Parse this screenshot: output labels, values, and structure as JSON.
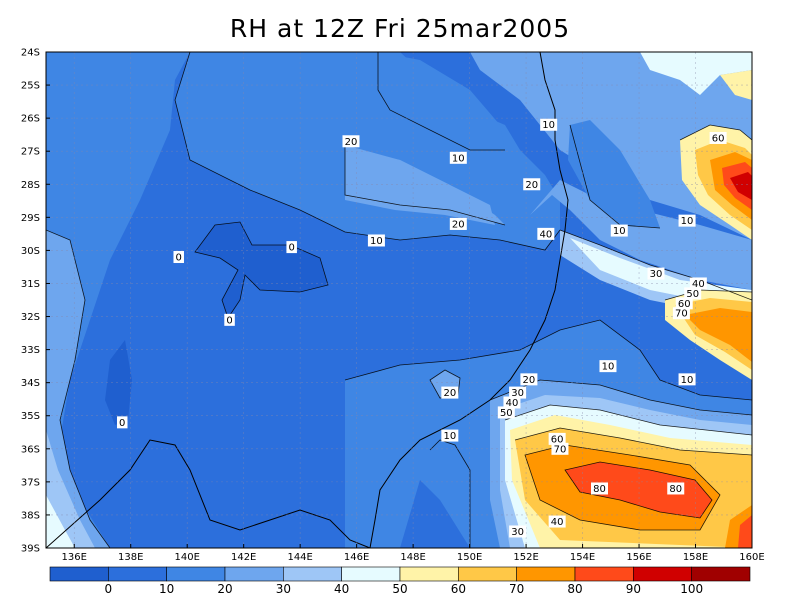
{
  "title": "RH at 12Z Fri 25mar2005",
  "axes": {
    "lat_labels": [
      "24S",
      "25S",
      "26S",
      "27S",
      "28S",
      "29S",
      "30S",
      "31S",
      "32S",
      "33S",
      "34S",
      "35S",
      "36S",
      "37S",
      "38S",
      "39S"
    ],
    "lon_labels": [
      "136E",
      "138E",
      "140E",
      "142E",
      "144E",
      "146E",
      "148E",
      "150E",
      "152E",
      "154E",
      "156E",
      "158E",
      "160E"
    ]
  },
  "colorbar": {
    "labels": [
      "0",
      "10",
      "20",
      "30",
      "40",
      "50",
      "60",
      "70",
      "80",
      "90",
      "100"
    ],
    "colors": [
      "#1f5fcf",
      "#2c6fdc",
      "#3f86e4",
      "#6ea6ee",
      "#9ec6f6",
      "#e6fbff",
      "#fff3a8",
      "#ffc847",
      "#ff9600",
      "#ff4a1a",
      "#d00000",
      "#a00000"
    ]
  },
  "contour_labels": [
    {
      "text": "20",
      "lon": 145.8,
      "lat": -26.7
    },
    {
      "text": "10",
      "lon": 149.6,
      "lat": -27.2
    },
    {
      "text": "10",
      "lon": 152.8,
      "lat": -26.2
    },
    {
      "text": "20",
      "lon": 152.2,
      "lat": -28.0
    },
    {
      "text": "20",
      "lon": 149.6,
      "lat": -29.2
    },
    {
      "text": "10",
      "lon": 146.7,
      "lat": -29.7
    },
    {
      "text": "0",
      "lon": 143.7,
      "lat": -29.9
    },
    {
      "text": "0",
      "lon": 139.7,
      "lat": -30.2
    },
    {
      "text": "0",
      "lon": 141.5,
      "lat": -32.1
    },
    {
      "text": "40",
      "lon": 152.7,
      "lat": -29.5
    },
    {
      "text": "10",
      "lon": 155.3,
      "lat": -29.4
    },
    {
      "text": "10",
      "lon": 157.7,
      "lat": -29.1
    },
    {
      "text": "30",
      "lon": 156.6,
      "lat": -30.7
    },
    {
      "text": "40",
      "lon": 158.1,
      "lat": -31.0
    },
    {
      "text": "50",
      "lon": 157.9,
      "lat": -31.3
    },
    {
      "text": "60",
      "lon": 157.6,
      "lat": -31.6
    },
    {
      "text": "70",
      "lon": 157.5,
      "lat": -31.9
    },
    {
      "text": "60",
      "lon": 158.8,
      "lat": -26.6
    },
    {
      "text": "10",
      "lon": 154.9,
      "lat": -33.5
    },
    {
      "text": "10",
      "lon": 157.7,
      "lat": -33.9
    },
    {
      "text": "20",
      "lon": 152.1,
      "lat": -33.9
    },
    {
      "text": "30",
      "lon": 151.7,
      "lat": -34.3
    },
    {
      "text": "40",
      "lon": 151.5,
      "lat": -34.6
    },
    {
      "text": "50",
      "lon": 151.3,
      "lat": -34.9
    },
    {
      "text": "20",
      "lon": 149.3,
      "lat": -34.3
    },
    {
      "text": "10",
      "lon": 149.3,
      "lat": -35.6
    },
    {
      "text": "60",
      "lon": 153.1,
      "lat": -35.7
    },
    {
      "text": "70",
      "lon": 153.2,
      "lat": -36.0
    },
    {
      "text": "80",
      "lon": 154.6,
      "lat": -37.2
    },
    {
      "text": "80",
      "lon": 157.3,
      "lat": -37.2
    },
    {
      "text": "40",
      "lon": 153.1,
      "lat": -38.2
    },
    {
      "text": "30",
      "lon": 151.7,
      "lat": -38.5
    },
    {
      "text": "0",
      "lon": 137.7,
      "lat": -35.2
    }
  ]
}
